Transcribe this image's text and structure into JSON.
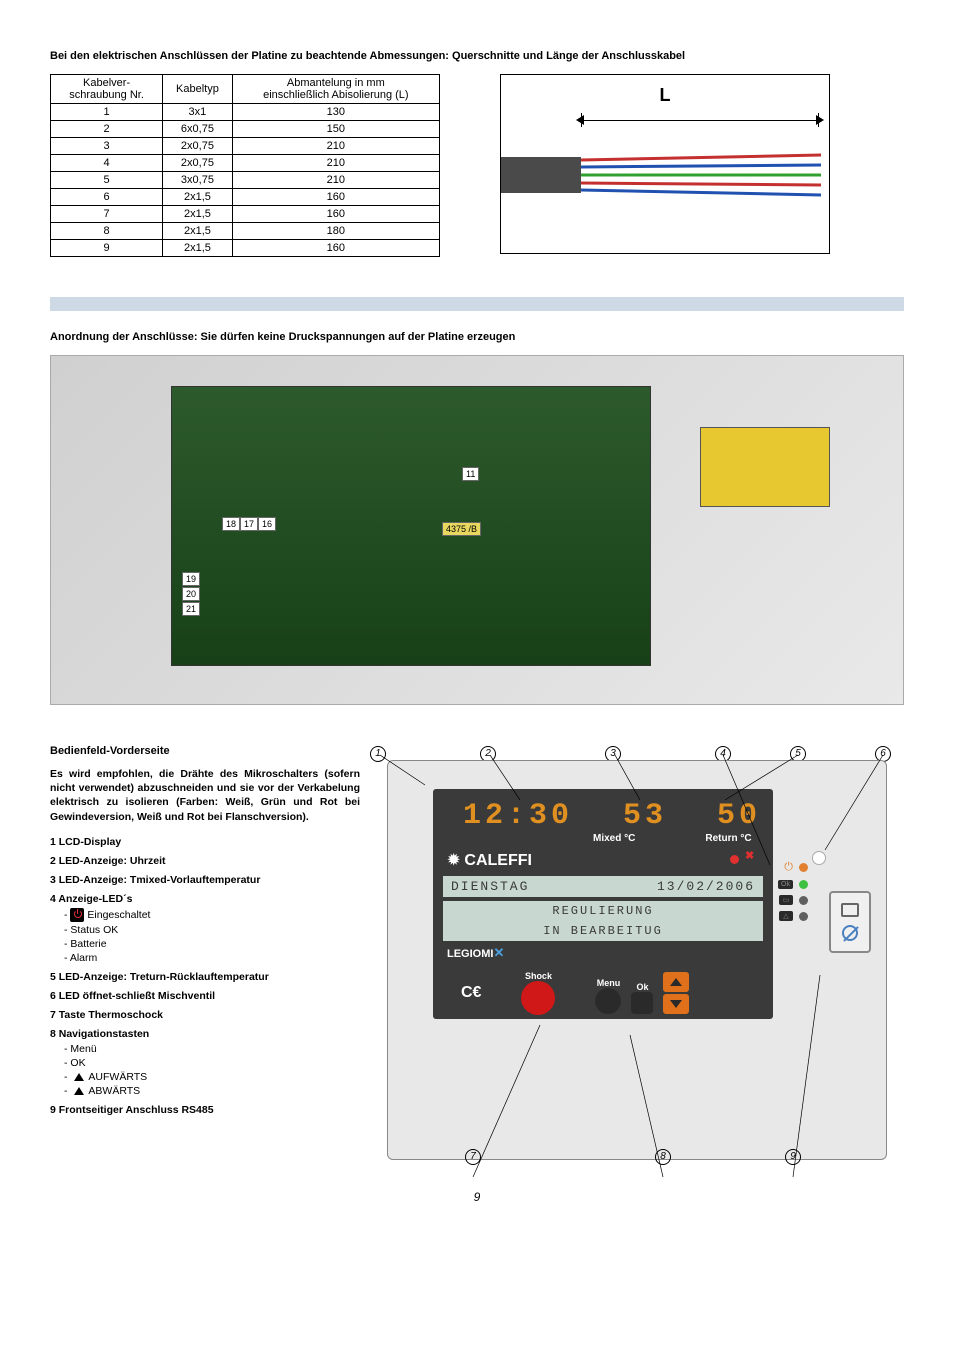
{
  "title1": "Bei den elektrischen Anschlüssen der Platine zu beachtende Abmessungen: Querschnitte und Länge der Anschlusskabel",
  "table": {
    "h1": "Kabelver-\nschraubung Nr.",
    "h2": "Kabeltyp",
    "h3": "Abmantelung in mm\neinschließlich Abisolierung (L)",
    "rows": [
      [
        "1",
        "3x1",
        "130"
      ],
      [
        "2",
        "6x0,75",
        "150"
      ],
      [
        "3",
        "2x0,75",
        "210"
      ],
      [
        "4",
        "2x0,75",
        "210"
      ],
      [
        "5",
        "3x0,75",
        "210"
      ],
      [
        "6",
        "2x1,5",
        "160"
      ],
      [
        "7",
        "2x1,5",
        "160"
      ],
      [
        "8",
        "2x1,5",
        "180"
      ],
      [
        "9",
        "2x1,5",
        "160"
      ]
    ]
  },
  "L_label": "L",
  "title2": "Anordnung der Anschlüsse: Sie dürfen keine Druckspannungen auf der Platine erzeugen",
  "pcb_tags": {
    "a": "18",
    "b": "17",
    "c": "16",
    "d": "11",
    "e": "4375 /B",
    "f": "21",
    "g": "20",
    "h": "19"
  },
  "panelSection": {
    "header": "Bedienfeld-Vorderseite",
    "intro": "Es wird empfohlen, die Drähte des Mikroschalters (sofern nicht verwendet) abzuschneiden und sie vor der Verkabelung elektrisch zu isolieren (Farben: Weiß, Grün und Rot bei Gewindeversion, Weiß und Rot bei Flanschversion).",
    "items": {
      "i1": "1  LCD-Display",
      "i2": "2  LED-Anzeige: Uhrzeit",
      "i3": "3  LED-Anzeige: Tmixed-Vorlauftemperatur",
      "i4": "4  Anzeige-LED´s",
      "i4a": "Eingeschaltet",
      "i4b": "- Status OK",
      "i4c": "- Batterie",
      "i4d": "- Alarm",
      "i5": "5  LED-Anzeige: Treturn-Rücklauftemperatur",
      "i6": "6  LED öffnet-schließt Mischventil",
      "i7": "7  Taste Thermoschock",
      "i8": "8  Navigationstasten",
      "i8a": "- Menü",
      "i8b": "- OK",
      "i8c": "AUFWÄRTS",
      "i8d": "ABWÄRTS",
      "i9": "9  Frontseitiger Anschluss RS485"
    }
  },
  "screen": {
    "time": "12:30",
    "t1": "53",
    "t2": "50",
    "mixed": "Mixed  °C",
    "return": "Return  °C",
    "brand": "CALEFFI",
    "day": "DIENSTAG",
    "date": "13/02/2006",
    "line1": "REGULIERUNG",
    "line2": "IN BEARBEITUG",
    "legiomix": "LEGIOMI",
    "shock": "Shock",
    "menu": "Menu",
    "ok": "Ok",
    "led_ok": "Ok"
  },
  "callouts": {
    "c1": "1",
    "c2": "2",
    "c3": "3",
    "c4": "4",
    "c5": "5",
    "c6": "6",
    "c7": "7",
    "c8": "8",
    "c9": "9"
  },
  "colors": {
    "led_power": "#e08030",
    "led_ok": "#40c040",
    "led_batt": "#707070",
    "led_alarm": "#707070",
    "seg": "#e09020",
    "shock": "#d01818",
    "arrow": "#e0701a",
    "mix_red": "#e03030",
    "mix_green": "#30c030"
  },
  "pageNum": "9"
}
